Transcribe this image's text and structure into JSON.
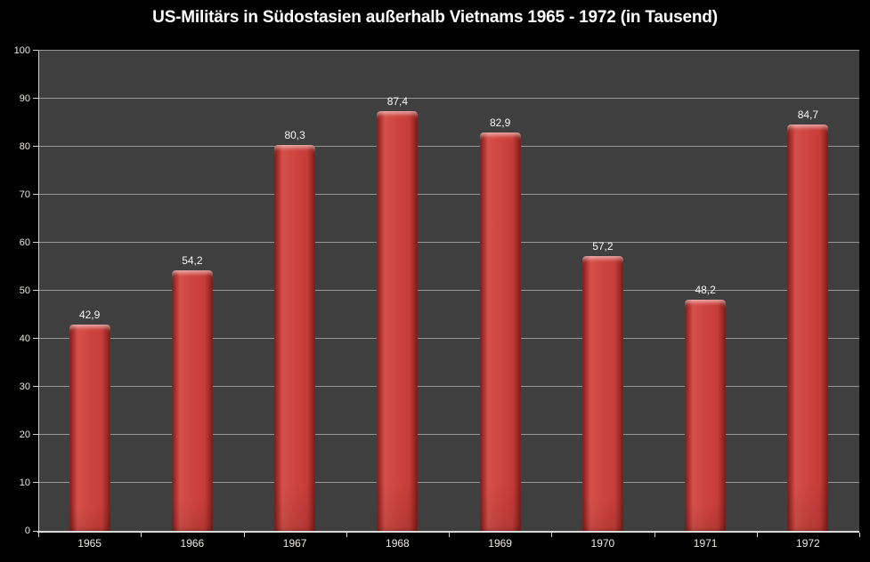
{
  "chart_data": {
    "type": "bar",
    "title": "US-Militärs in Südostasien außerhalb Vietnams 1965 - 1972 (in Tausend)",
    "categories": [
      "1965",
      "1966",
      "1967",
      "1968",
      "1969",
      "1970",
      "1971",
      "1972"
    ],
    "values": [
      42.9,
      54.2,
      80.3,
      87.4,
      82.9,
      57.2,
      48.2,
      84.7
    ],
    "value_labels": [
      "42,9",
      "54,2",
      "80,3",
      "87,4",
      "82,9",
      "57,2",
      "48,2",
      "84,7"
    ],
    "xlabel": "",
    "ylabel": "",
    "ylim": [
      0,
      100
    ],
    "yticks": [
      0,
      10,
      20,
      30,
      40,
      50,
      60,
      70,
      80,
      90,
      100
    ],
    "grid": true,
    "legend": false,
    "colors": {
      "page_background": "#000000",
      "plot_background": "#3f3f3f",
      "gridline": "#989898",
      "axis_line": "#d9d9d9",
      "bar_main": "#ce433f",
      "bar_edge_dark": "#6f1e1b",
      "axis_text": "#edeae2",
      "data_label_text": "#f7f7f7",
      "title_text": "#ffffff"
    }
  }
}
